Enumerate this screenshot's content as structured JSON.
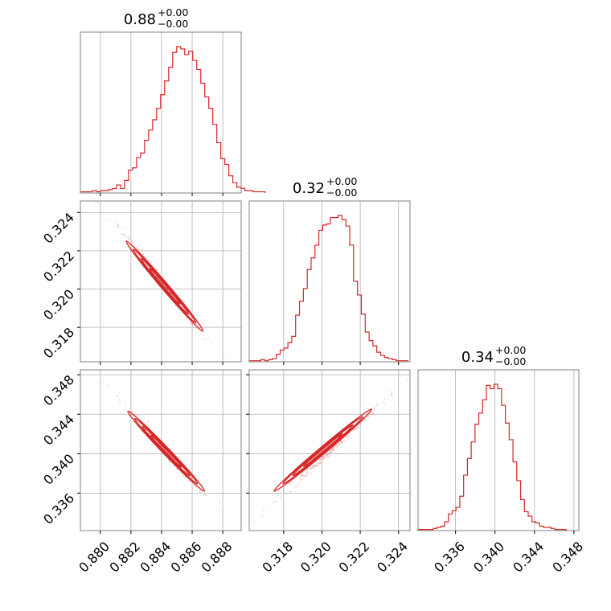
{
  "chart_data": {
    "type": "corner",
    "color": "#d62728",
    "grid": true,
    "parameters": [
      {
        "title": {
          "value": "0.88",
          "upper": "+0.00",
          "lower": "−0.00"
        },
        "range": [
          0.8787,
          0.8892
        ],
        "ticks": [
          0.88,
          0.882,
          0.884,
          0.886,
          0.888
        ],
        "tick_labels": [
          "0.880",
          "0.882",
          "0.884",
          "0.886",
          "0.888"
        ],
        "histogram": {
          "bin_start": 0.8787,
          "bin_width": 0.000262,
          "counts": [
            1,
            1,
            1,
            2,
            1,
            2,
            2,
            3,
            4,
            7,
            4,
            11,
            20,
            22,
            31,
            35,
            46,
            55,
            64,
            74,
            86,
            98,
            110,
            123,
            128,
            126,
            121,
            124,
            116,
            108,
            96,
            84,
            74,
            60,
            44,
            30,
            25,
            15,
            9,
            5,
            4,
            2,
            2,
            1,
            1,
            1
          ]
        }
      },
      {
        "title": {
          "value": "0.32",
          "upper": "+0.00",
          "lower": "−0.00"
        },
        "range": [
          0.3162,
          0.3246
        ],
        "ticks": [
          0.318,
          0.32,
          0.322,
          0.324
        ],
        "tick_labels": [
          "0.318",
          "0.320",
          "0.322",
          "0.324"
        ],
        "histogram": {
          "bin_start": 0.3162,
          "bin_width": 0.000202,
          "counts": [
            1,
            1,
            1,
            2,
            1,
            2,
            3,
            7,
            11,
            13,
            18,
            24,
            44,
            57,
            69,
            87,
            98,
            110,
            124,
            129,
            130,
            136,
            136,
            138,
            134,
            128,
            110,
            76,
            63,
            45,
            28,
            20,
            15,
            9,
            6,
            4,
            3,
            2,
            1,
            1,
            1
          ]
        }
      },
      {
        "title": {
          "value": "0.34",
          "upper": "+0.00",
          "lower": "−0.00"
        },
        "range": [
          0.3322,
          0.3485
        ],
        "ticks": [
          0.336,
          0.34,
          0.344,
          0.348
        ],
        "tick_labels": [
          "0.336",
          "0.340",
          "0.344",
          "0.348"
        ],
        "histogram": {
          "bin_start": 0.3322,
          "bin_width": 0.000385,
          "counts": [
            1,
            1,
            1,
            1,
            2,
            3,
            4,
            8,
            15,
            18,
            21,
            31,
            50,
            65,
            80,
            96,
            106,
            118,
            131,
            128,
            132,
            128,
            113,
            97,
            82,
            62,
            45,
            28,
            17,
            13,
            8,
            7,
            4,
            3,
            3,
            2,
            1,
            1,
            1
          ]
        }
      }
    ],
    "pairs": [
      {
        "row": 1,
        "col": 0,
        "from": [
          0.8798,
          0.3246
        ],
        "to": [
          0.8882,
          0.3162
        ],
        "core_from": [
          0.8817,
          0.3225
        ],
        "core_to": [
          0.8867,
          0.3178
        ],
        "correlation": "negative"
      },
      {
        "row": 2,
        "col": 0,
        "from": [
          0.88,
          0.3475
        ],
        "to": [
          0.8886,
          0.333
        ],
        "core_from": [
          0.8818,
          0.3443
        ],
        "core_to": [
          0.8868,
          0.3362
        ],
        "correlation": "negative"
      },
      {
        "row": 2,
        "col": 1,
        "from": [
          0.3164,
          0.333
        ],
        "to": [
          0.3244,
          0.3475
        ],
        "core_from": [
          0.3175,
          0.3362
        ],
        "core_to": [
          0.3226,
          0.3445
        ],
        "correlation": "positive"
      }
    ]
  }
}
